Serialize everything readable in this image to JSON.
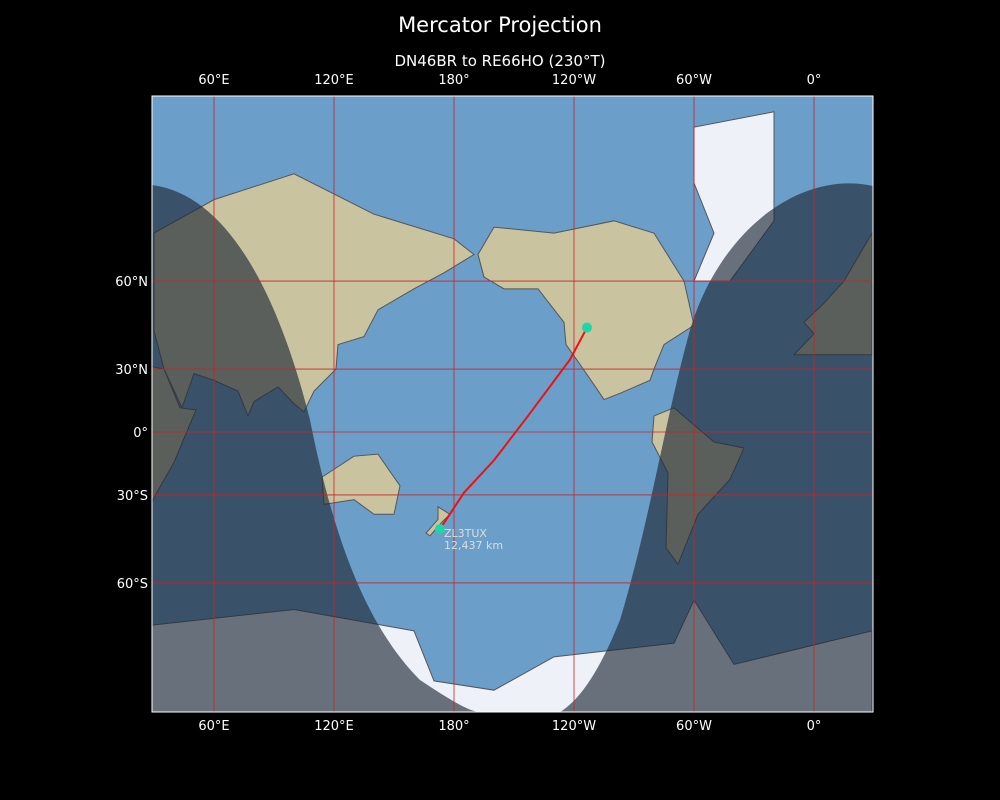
{
  "title": "Mercator Projection",
  "subtitle": "DN46BR to RE66HO (230°T)",
  "map": {
    "projection": "mercator",
    "central_longitude": -151,
    "lon_ticks": [
      {
        "lon": 60,
        "label": "60°E"
      },
      {
        "lon": 120,
        "label": "120°E"
      },
      {
        "lon": 180,
        "label": "180°"
      },
      {
        "lon": 240,
        "label": "120°W"
      },
      {
        "lon": 300,
        "label": "60°W"
      },
      {
        "lon": 360,
        "label": "0°"
      }
    ],
    "lat_ticks": [
      {
        "lat": 60,
        "label": "60°N"
      },
      {
        "lat": 30,
        "label": "30°N"
      },
      {
        "lat": 0,
        "label": "0°"
      },
      {
        "lat": -30,
        "label": "30°S"
      },
      {
        "lat": -60,
        "label": "60°S"
      }
    ],
    "colors": {
      "ocean": "#6b9ec8",
      "land": "#c9c3a0",
      "ice": "#eef2f8",
      "night": "#1e2a38",
      "grid": "#cc2222",
      "route": "#ee1111",
      "marker": "#1fd6a6"
    },
    "route": {
      "from": {
        "lon": -113.5,
        "lat": 46.2
      },
      "to": {
        "lon": 173,
        "lat": -43.6
      },
      "path": [
        [
          -113.5,
          46.2
        ],
        [
          -122,
          34
        ],
        [
          -143,
          8
        ],
        [
          -160,
          -14
        ],
        [
          -175,
          -29
        ],
        [
          173,
          -43.6
        ]
      ]
    },
    "station_label": "ZL3TUX",
    "distance_label": "12,437 km"
  }
}
